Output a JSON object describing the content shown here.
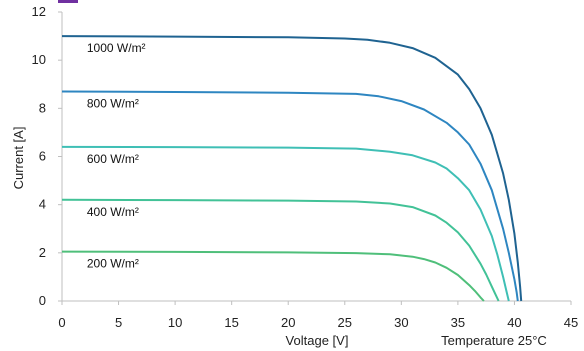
{
  "chart_data": {
    "type": "line",
    "xlabel": "Voltage [V]",
    "ylabel": "Current [A]",
    "xlim": [
      0,
      45
    ],
    "ylim": [
      0,
      12
    ],
    "xticks": [
      "0",
      "5",
      "10",
      "15",
      "20",
      "25",
      "30",
      "35",
      "40",
      "45"
    ],
    "yticks": [
      "0",
      "2",
      "4",
      "6",
      "8",
      "10",
      "12"
    ],
    "annotation": "Temperature 25°C",
    "accent_color": "#7030a0",
    "series": [
      {
        "name": "1000 W/m²",
        "color": "#1f6391",
        "x": [
          0,
          10,
          20,
          25,
          27,
          29,
          31,
          33,
          35,
          36,
          37,
          38,
          39,
          39.5,
          40,
          40.3,
          40.5,
          40.6
        ],
        "y": [
          11.0,
          10.98,
          10.95,
          10.9,
          10.85,
          10.72,
          10.5,
          10.1,
          9.4,
          8.8,
          8.0,
          6.9,
          5.3,
          4.2,
          2.8,
          1.6,
          0.6,
          0
        ]
      },
      {
        "name": "800 W/m²",
        "color": "#2e86c1",
        "x": [
          0,
          10,
          20,
          26,
          28,
          30,
          32,
          34,
          35,
          36,
          37,
          38,
          39,
          39.5,
          40,
          40.2,
          40.3
        ],
        "y": [
          8.7,
          8.68,
          8.65,
          8.6,
          8.5,
          8.3,
          7.95,
          7.4,
          7.0,
          6.5,
          5.7,
          4.6,
          3.0,
          2.0,
          0.9,
          0.35,
          0
        ]
      },
      {
        "name": "600 W/m²",
        "color": "#3fbfb5",
        "x": [
          0,
          10,
          20,
          26,
          29,
          31,
          33,
          34,
          35,
          36,
          37,
          38,
          38.5,
          39,
          39.3,
          39.5
        ],
        "y": [
          6.4,
          6.39,
          6.37,
          6.33,
          6.2,
          6.05,
          5.75,
          5.5,
          5.1,
          4.6,
          3.8,
          2.7,
          1.9,
          1.0,
          0.4,
          0
        ]
      },
      {
        "name": "400 W/m²",
        "color": "#42c297",
        "x": [
          0,
          10,
          20,
          26,
          29,
          31,
          33,
          34,
          35,
          36,
          37,
          37.5,
          38,
          38.3,
          38.6
        ],
        "y": [
          4.2,
          4.19,
          4.17,
          4.13,
          4.05,
          3.9,
          3.55,
          3.25,
          2.85,
          2.3,
          1.55,
          1.1,
          0.6,
          0.3,
          0
        ]
      },
      {
        "name": "200 W/m²",
        "color": "#4fbf7a",
        "x": [
          0,
          10,
          20,
          26,
          29,
          31,
          32,
          33,
          34,
          35,
          36,
          36.5,
          37,
          37.3
        ],
        "y": [
          2.05,
          2.04,
          2.02,
          1.99,
          1.94,
          1.84,
          1.74,
          1.6,
          1.38,
          1.08,
          0.66,
          0.42,
          0.15,
          0
        ]
      }
    ]
  }
}
